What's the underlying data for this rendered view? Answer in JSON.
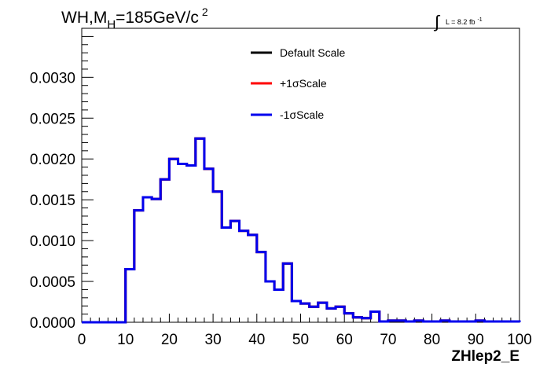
{
  "chart_data": {
    "type": "histogram",
    "title": {
      "main": "WH,M",
      "subscript": "H",
      "rest": "=185GeV/c",
      "superscript": "2"
    },
    "lumi": {
      "integral_symbol": "∫",
      "text": "L = 8.2 fb",
      "superscript": "-1"
    },
    "xlabel": "ZHlep2_E",
    "ylabel": "",
    "xlim": [
      0,
      100
    ],
    "ylim": [
      0,
      0.0036
    ],
    "x_ticks": [
      0,
      10,
      20,
      30,
      40,
      50,
      60,
      70,
      80,
      90,
      100
    ],
    "x_tick_labels": [
      "0",
      "10",
      "20",
      "30",
      "40",
      "50",
      "60",
      "70",
      "80",
      "90",
      "100"
    ],
    "y_ticks": [
      0,
      0.0005,
      0.001,
      0.0015,
      0.002,
      0.0025,
      0.003
    ],
    "y_tick_labels": [
      "0.0000",
      "0.0005",
      "0.0010",
      "0.0015",
      "0.0020",
      "0.0025",
      "0.0030"
    ],
    "bin_edges": [
      0,
      2,
      4,
      6,
      8,
      10,
      12,
      14,
      16,
      18,
      20,
      22,
      24,
      26,
      28,
      30,
      32,
      34,
      36,
      38,
      40,
      42,
      44,
      46,
      48,
      50,
      52,
      54,
      56,
      58,
      60,
      62,
      64,
      66,
      68,
      70,
      72,
      74,
      76,
      78,
      80,
      82,
      84,
      86,
      88,
      90,
      92,
      94,
      96,
      98,
      100
    ],
    "legend_position": "top-center",
    "series": [
      {
        "name": "Default Scale",
        "color": "#000000",
        "values": [
          0,
          0,
          0,
          0,
          0,
          0.00065,
          0.00137,
          0.00153,
          0.00151,
          0.00175,
          0.002,
          0.00194,
          0.00192,
          0.00225,
          0.00188,
          0.0016,
          0.00116,
          0.00124,
          0.00112,
          0.00107,
          0.00086,
          0.0005,
          0.0004,
          0.00072,
          0.00026,
          0.00023,
          0.00019,
          0.00024,
          0.00017,
          0.00019,
          0.00011,
          6e-05,
          5e-05,
          0.00013,
          1e-05,
          2e-05,
          2e-05,
          1e-05,
          2e-05,
          1e-05,
          1e-05,
          2e-05,
          1e-05,
          1e-05,
          1e-05,
          2e-05,
          1e-05,
          1e-05,
          1e-05,
          1e-05
        ]
      },
      {
        "name": "+1σScale",
        "color": "#ff0000",
        "values": [
          0,
          0,
          0,
          0,
          0,
          0.00065,
          0.00137,
          0.00153,
          0.00151,
          0.00175,
          0.002,
          0.00194,
          0.00192,
          0.00225,
          0.00188,
          0.0016,
          0.00116,
          0.00124,
          0.00112,
          0.00107,
          0.00086,
          0.0005,
          0.0004,
          0.00072,
          0.00026,
          0.00023,
          0.00019,
          0.00024,
          0.00017,
          0.00019,
          0.00011,
          6e-05,
          5e-05,
          0.00013,
          1e-05,
          2e-05,
          2e-05,
          1e-05,
          2e-05,
          1e-05,
          1e-05,
          2e-05,
          1e-05,
          1e-05,
          1e-05,
          2e-05,
          1e-05,
          1e-05,
          1e-05,
          1e-05
        ]
      },
      {
        "name": "-1σScale",
        "color": "#0000ee",
        "values": [
          0,
          0,
          0,
          0,
          0,
          0.00065,
          0.00137,
          0.00153,
          0.00151,
          0.00175,
          0.002,
          0.00194,
          0.00192,
          0.00225,
          0.00188,
          0.0016,
          0.00116,
          0.00124,
          0.00112,
          0.00107,
          0.00086,
          0.0005,
          0.0004,
          0.00072,
          0.00026,
          0.00023,
          0.00019,
          0.00024,
          0.00017,
          0.00019,
          0.00011,
          6e-05,
          5e-05,
          0.00013,
          1e-05,
          2e-05,
          2e-05,
          1e-05,
          2e-05,
          1e-05,
          1e-05,
          2e-05,
          1e-05,
          1e-05,
          1e-05,
          2e-05,
          1e-05,
          1e-05,
          1e-05,
          1e-05
        ]
      }
    ]
  }
}
